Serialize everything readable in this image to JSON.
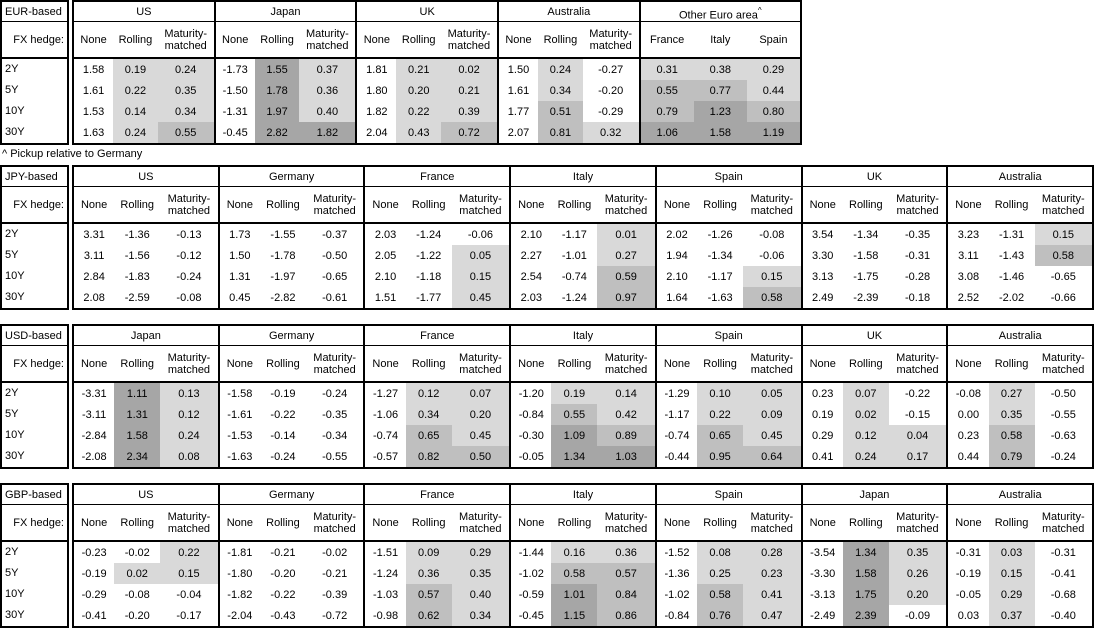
{
  "note": "^ Pickup relative to Germany",
  "labels": {
    "fx_hedge": "FX hedge:",
    "tenors": [
      "2Y",
      "5Y",
      "10Y",
      "30Y"
    ],
    "hedge_columns": [
      "None",
      "Rolling",
      "Maturity-matched"
    ]
  },
  "colors": {
    "background": "#ffffff",
    "border": "#000000",
    "shade_low": "#d9d9d9",
    "shade_mid": "#bfbfbf",
    "shade_high": "#a6a6a6"
  },
  "shading": {
    "rule": "Rolling, Maturity-matched and pickup cells are shaded when value >= 0",
    "thresholds": [
      0.5,
      1.0
    ]
  },
  "chart_data": [
    {
      "type": "table",
      "title": "EUR-based",
      "row_labels": [
        "2Y",
        "5Y",
        "10Y",
        "30Y"
      ],
      "blocks": [
        {
          "country": "US",
          "rows": [
            [
              1.58,
              0.19,
              0.24
            ],
            [
              1.61,
              0.22,
              0.35
            ],
            [
              1.53,
              0.14,
              0.34
            ],
            [
              1.63,
              0.24,
              0.55
            ]
          ]
        },
        {
          "country": "Japan",
          "rows": [
            [
              -1.73,
              1.55,
              0.37
            ],
            [
              -1.5,
              1.78,
              0.36
            ],
            [
              -1.31,
              1.97,
              0.4
            ],
            [
              -0.45,
              2.82,
              1.82
            ]
          ]
        },
        {
          "country": "UK",
          "rows": [
            [
              1.81,
              0.21,
              0.02
            ],
            [
              1.8,
              0.2,
              0.21
            ],
            [
              1.82,
              0.22,
              0.39
            ],
            [
              2.04,
              0.43,
              0.72
            ]
          ]
        },
        {
          "country": "Australia",
          "rows": [
            [
              1.5,
              0.24,
              -0.27
            ],
            [
              1.61,
              0.34,
              -0.2
            ],
            [
              1.77,
              0.51,
              -0.29
            ],
            [
              2.07,
              0.81,
              0.32
            ]
          ]
        },
        {
          "country": "Other Euro area",
          "superscript": "^",
          "pickup": true,
          "columns": [
            "France",
            "Italy",
            "Spain"
          ],
          "rows": [
            [
              0.31,
              0.38,
              0.29
            ],
            [
              0.55,
              0.77,
              0.44
            ],
            [
              0.79,
              1.23,
              0.8
            ],
            [
              1.06,
              1.58,
              1.19
            ]
          ]
        }
      ]
    },
    {
      "type": "table",
      "title": "JPY-based",
      "row_labels": [
        "2Y",
        "5Y",
        "10Y",
        "30Y"
      ],
      "blocks": [
        {
          "country": "US",
          "rows": [
            [
              3.31,
              -1.36,
              -0.13
            ],
            [
              3.11,
              -1.56,
              -0.12
            ],
            [
              2.84,
              -1.83,
              -0.24
            ],
            [
              2.08,
              -2.59,
              -0.08
            ]
          ]
        },
        {
          "country": "Germany",
          "rows": [
            [
              1.73,
              -1.55,
              -0.37
            ],
            [
              1.5,
              -1.78,
              -0.5
            ],
            [
              1.31,
              -1.97,
              -0.65
            ],
            [
              0.45,
              -2.82,
              -0.61
            ]
          ]
        },
        {
          "country": "France",
          "rows": [
            [
              2.03,
              -1.24,
              -0.06
            ],
            [
              2.05,
              -1.22,
              0.05
            ],
            [
              2.1,
              -1.18,
              0.15
            ],
            [
              1.51,
              -1.77,
              0.45
            ]
          ]
        },
        {
          "country": "Italy",
          "rows": [
            [
              2.1,
              -1.17,
              0.01
            ],
            [
              2.27,
              -1.01,
              0.27
            ],
            [
              2.54,
              -0.74,
              0.59
            ],
            [
              2.03,
              -1.24,
              0.97
            ]
          ]
        },
        {
          "country": "Spain",
          "rows": [
            [
              2.02,
              -1.26,
              -0.08
            ],
            [
              1.94,
              -1.34,
              -0.06
            ],
            [
              2.1,
              -1.17,
              0.15
            ],
            [
              1.64,
              -1.63,
              0.58
            ]
          ]
        },
        {
          "country": "UK",
          "rows": [
            [
              3.54,
              -1.34,
              -0.35
            ],
            [
              3.3,
              -1.58,
              -0.31
            ],
            [
              3.13,
              -1.75,
              -0.28
            ],
            [
              2.49,
              -2.39,
              -0.18
            ]
          ]
        },
        {
          "country": "Australia",
          "rows": [
            [
              3.23,
              -1.31,
              0.15
            ],
            [
              3.11,
              -1.43,
              0.58
            ],
            [
              3.08,
              -1.46,
              -0.65
            ],
            [
              2.52,
              -2.02,
              -0.66
            ]
          ]
        }
      ]
    },
    {
      "type": "table",
      "title": "USD-based",
      "row_labels": [
        "2Y",
        "5Y",
        "10Y",
        "30Y"
      ],
      "blocks": [
        {
          "country": "Japan",
          "rows": [
            [
              -3.31,
              1.11,
              0.13
            ],
            [
              -3.11,
              1.31,
              0.12
            ],
            [
              -2.84,
              1.58,
              0.24
            ],
            [
              -2.08,
              2.34,
              0.08
            ]
          ]
        },
        {
          "country": "Germany",
          "rows": [
            [
              -1.58,
              -0.19,
              -0.24
            ],
            [
              -1.61,
              -0.22,
              -0.35
            ],
            [
              -1.53,
              -0.14,
              -0.34
            ],
            [
              -1.63,
              -0.24,
              -0.55
            ]
          ]
        },
        {
          "country": "France",
          "rows": [
            [
              -1.27,
              0.12,
              0.07
            ],
            [
              -1.06,
              0.34,
              0.2
            ],
            [
              -0.74,
              0.65,
              0.45
            ],
            [
              -0.57,
              0.82,
              0.5
            ]
          ]
        },
        {
          "country": "Italy",
          "rows": [
            [
              -1.2,
              0.19,
              0.14
            ],
            [
              -0.84,
              0.55,
              0.42
            ],
            [
              -0.3,
              1.09,
              0.89
            ],
            [
              -0.05,
              1.34,
              1.03
            ]
          ]
        },
        {
          "country": "Spain",
          "rows": [
            [
              -1.29,
              0.1,
              0.05
            ],
            [
              -1.17,
              0.22,
              0.09
            ],
            [
              -0.74,
              0.65,
              0.45
            ],
            [
              -0.44,
              0.95,
              0.64
            ]
          ]
        },
        {
          "country": "UK",
          "rows": [
            [
              0.23,
              0.07,
              -0.22
            ],
            [
              0.19,
              0.02,
              -0.15
            ],
            [
              0.29,
              0.12,
              0.04
            ],
            [
              0.41,
              0.24,
              0.17
            ]
          ]
        },
        {
          "country": "Australia",
          "rows": [
            [
              -0.08,
              0.27,
              -0.5
            ],
            [
              0.0,
              0.35,
              -0.55
            ],
            [
              0.23,
              0.58,
              -0.63
            ],
            [
              0.44,
              0.79,
              -0.24
            ]
          ]
        }
      ]
    },
    {
      "type": "table",
      "title": "GBP-based",
      "row_labels": [
        "2Y",
        "5Y",
        "10Y",
        "30Y"
      ],
      "blocks": [
        {
          "country": "US",
          "rows": [
            [
              -0.23,
              -0.02,
              0.22
            ],
            [
              -0.19,
              0.02,
              0.15
            ],
            [
              -0.29,
              -0.08,
              -0.04
            ],
            [
              -0.41,
              -0.2,
              -0.17
            ]
          ]
        },
        {
          "country": "Germany",
          "rows": [
            [
              -1.81,
              -0.21,
              -0.02
            ],
            [
              -1.8,
              -0.2,
              -0.21
            ],
            [
              -1.82,
              -0.22,
              -0.39
            ],
            [
              -2.04,
              -0.43,
              -0.72
            ]
          ]
        },
        {
          "country": "France",
          "rows": [
            [
              -1.51,
              0.09,
              0.29
            ],
            [
              -1.24,
              0.36,
              0.35
            ],
            [
              -1.03,
              0.57,
              0.4
            ],
            [
              -0.98,
              0.62,
              0.34
            ]
          ]
        },
        {
          "country": "Italy",
          "rows": [
            [
              -1.44,
              0.16,
              0.36
            ],
            [
              -1.02,
              0.58,
              0.57
            ],
            [
              -0.59,
              1.01,
              0.84
            ],
            [
              -0.45,
              1.15,
              0.86
            ]
          ]
        },
        {
          "country": "Spain",
          "rows": [
            [
              -1.52,
              0.08,
              0.28
            ],
            [
              -1.36,
              0.25,
              0.23
            ],
            [
              -1.02,
              0.58,
              0.41
            ],
            [
              -0.84,
              0.76,
              0.47
            ]
          ]
        },
        {
          "country": "Japan",
          "rows": [
            [
              -3.54,
              1.34,
              0.35
            ],
            [
              -3.3,
              1.58,
              0.26
            ],
            [
              -3.13,
              1.75,
              0.2
            ],
            [
              -2.49,
              2.39,
              -0.09
            ]
          ]
        },
        {
          "country": "Australia",
          "rows": [
            [
              -0.31,
              0.03,
              -0.31
            ],
            [
              -0.19,
              0.15,
              -0.41
            ],
            [
              -0.05,
              0.29,
              -0.68
            ],
            [
              0.03,
              0.37,
              -0.4
            ]
          ]
        }
      ]
    }
  ]
}
